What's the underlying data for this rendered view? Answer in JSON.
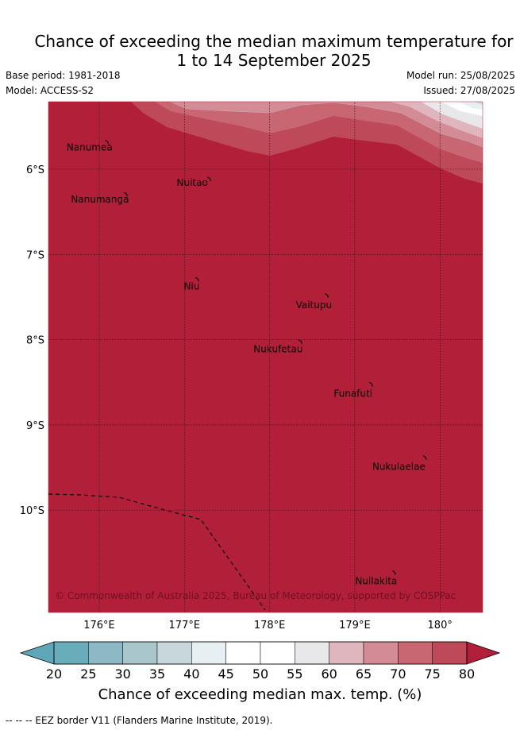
{
  "title_line1": "Chance of exceeding the median maximum temperature for",
  "title_line2": "1 to 14 September 2025",
  "base_period": "Base period: 1981-2018",
  "model": "Model: ACCESS-S2",
  "model_run": "Model run: 25/08/2025",
  "issued": "Issued: 27/08/2025",
  "copyright": "© Commonwealth of Australia 2025, Bureau of Meteorology, supported by COSPPac",
  "lat_ticks": [
    "6°S",
    "7°S",
    "8°S",
    "9°S",
    "10°S"
  ],
  "lon_ticks": [
    "176°E",
    "177°E",
    "178°E",
    "179°E",
    "180°"
  ],
  "islands": [
    {
      "name": "Nanumea",
      "lon": 176.1,
      "lat": -5.68
    },
    {
      "name": "Nuitao",
      "lon": 177.3,
      "lat": -6.11
    },
    {
      "name": "Nanumanga",
      "lon": 176.32,
      "lat": -6.29
    },
    {
      "name": "Niu",
      "lon": 177.16,
      "lat": -7.29
    },
    {
      "name": "Vaitupu",
      "lon": 178.68,
      "lat": -7.48
    },
    {
      "name": "Nukufetau",
      "lon": 178.37,
      "lat": -8.02
    },
    {
      "name": "Funafuti",
      "lon": 179.2,
      "lat": -8.52
    },
    {
      "name": "Nukulaelae",
      "lon": 179.83,
      "lat": -9.38
    },
    {
      "name": "Nuilakita",
      "lon": 179.47,
      "lat": -10.73
    }
  ],
  "colorbar": {
    "ticks": [
      "20",
      "25",
      "30",
      "35",
      "40",
      "45",
      "50",
      "55",
      "60",
      "65",
      "70",
      "75",
      "80"
    ],
    "colors": [
      "#6aadba",
      "#8cb9c4",
      "#a8c6cc",
      "#c8d7dc",
      "#e8eff2",
      "#ffffff",
      "#ffffff",
      "#e8e8ea",
      "#dfb6bd",
      "#d38c96",
      "#c86672",
      "#be4a59"
    ],
    "under_color": "#5ea7b8",
    "over_color": "#b21f39",
    "label": "Chance of exceeding median max. temp. (%)"
  },
  "footnote": "--  --  -- EEZ border V11 (Flanders Marine Institute, 2019)."
}
